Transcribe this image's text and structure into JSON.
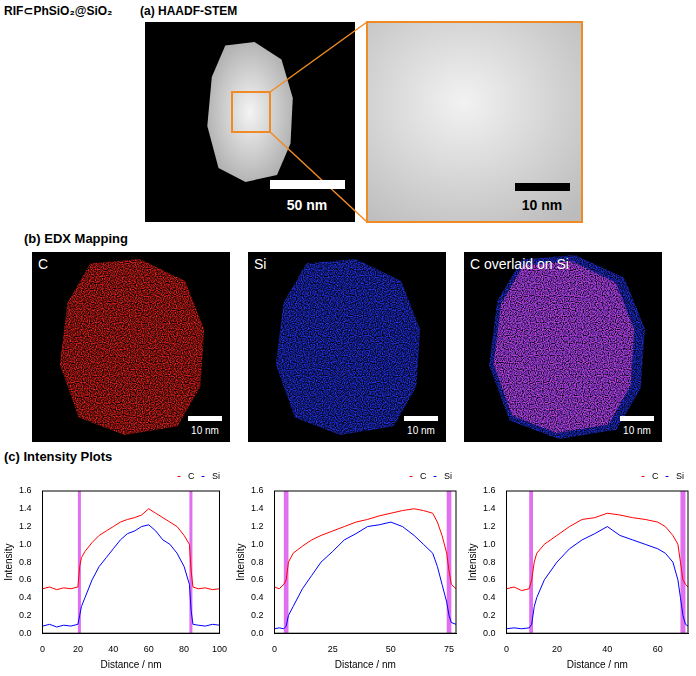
{
  "figure_label": "RIF⊂PhSiO₂@SiO₂",
  "panels": {
    "a": {
      "label": "(a)",
      "title": "HAADF-STEM",
      "scale_bars": [
        "50 nm",
        "10 nm"
      ]
    },
    "b": {
      "label": "(b)",
      "title": "EDX Mapping",
      "maps": [
        {
          "label": "C",
          "color": "#e8201c",
          "scale_bar": "10 nm"
        },
        {
          "label": "Si",
          "color": "#2233ee",
          "scale_bar": "10 nm"
        },
        {
          "label": "C overlaid on Si",
          "color": "#d040d0",
          "scale_bar": "10 nm"
        }
      ]
    },
    "c": {
      "label": "(c)",
      "title": "Intensity Plots"
    }
  },
  "chart_data": [
    {
      "type": "line",
      "x_label": "Distance / nm",
      "y_label": "Intensity",
      "x": [
        0,
        4,
        8,
        12,
        16,
        20,
        21,
        22,
        24,
        28,
        32,
        36,
        40,
        44,
        48,
        52,
        56,
        60,
        64,
        68,
        72,
        76,
        80,
        83,
        84,
        85,
        88,
        92,
        96,
        100
      ],
      "series": [
        {
          "name": "C",
          "color": "#ff0000",
          "values": [
            0.5,
            0.52,
            0.49,
            0.51,
            0.5,
            0.52,
            0.75,
            0.85,
            0.92,
            1.02,
            1.1,
            1.15,
            1.2,
            1.25,
            1.28,
            1.3,
            1.33,
            1.4,
            1.35,
            1.3,
            1.25,
            1.2,
            1.1,
            1.0,
            0.7,
            0.52,
            0.5,
            0.51,
            0.49,
            0.5
          ]
        },
        {
          "name": "Si",
          "color": "#0000ff",
          "values": [
            0.08,
            0.1,
            0.07,
            0.09,
            0.08,
            0.1,
            0.2,
            0.3,
            0.4,
            0.6,
            0.75,
            0.85,
            0.95,
            1.05,
            1.12,
            1.15,
            1.2,
            1.22,
            1.15,
            1.05,
            1.0,
            0.9,
            0.75,
            0.55,
            0.25,
            0.1,
            0.09,
            0.08,
            0.1,
            0.09
          ]
        }
      ],
      "highlights": {
        "color": "#e070f0",
        "ranges": [
          [
            20,
            21.5
          ],
          [
            83,
            84.5
          ]
        ]
      },
      "xlim": [
        0,
        100
      ],
      "xticks": [
        0,
        20,
        40,
        60,
        80,
        100
      ],
      "ylim": [
        0,
        1.6
      ],
      "yticks": [
        {
          "value": 0,
          "label": "0.0"
        },
        0.2,
        0.4,
        0.6,
        0.8,
        {
          "value": 1,
          "label": "1.0"
        },
        1.2,
        1.4,
        1.6
      ],
      "grid": false,
      "legend": "top"
    },
    {
      "type": "line",
      "x_label": "Distance / nm",
      "y_label": "Intensity",
      "x": [
        0,
        2,
        4,
        5,
        6,
        8,
        12,
        16,
        20,
        25,
        30,
        35,
        40,
        45,
        50,
        55,
        60,
        64,
        68,
        70,
        72,
        74,
        75,
        76,
        78
      ],
      "series": [
        {
          "name": "C",
          "color": "#ff0000",
          "values": [
            0.52,
            0.5,
            0.55,
            0.6,
            0.8,
            0.9,
            0.98,
            1.05,
            1.1,
            1.15,
            1.2,
            1.25,
            1.28,
            1.32,
            1.35,
            1.38,
            1.4,
            1.38,
            1.35,
            1.25,
            1.1,
            0.9,
            0.7,
            0.55,
            0.5
          ]
        },
        {
          "name": "Si",
          "color": "#0000ff",
          "values": [
            0.05,
            0.06,
            0.05,
            0.08,
            0.2,
            0.3,
            0.5,
            0.65,
            0.8,
            0.92,
            1.05,
            1.12,
            1.2,
            1.22,
            1.25,
            1.2,
            1.1,
            1.0,
            0.9,
            0.75,
            0.55,
            0.35,
            0.2,
            0.12,
            0.1
          ]
        }
      ],
      "highlights": {
        "color": "#e070f0",
        "ranges": [
          [
            4,
            6
          ],
          [
            74,
            76
          ]
        ]
      },
      "xlim": [
        0,
        78
      ],
      "xticks": [
        0,
        25,
        50,
        75
      ],
      "ylim": [
        0,
        1.6
      ],
      "yticks": [
        {
          "value": 0,
          "label": "0.0"
        },
        0.2,
        0.4,
        0.6,
        0.8,
        {
          "value": 1,
          "label": "1.0"
        },
        1.2,
        1.4,
        1.6
      ],
      "grid": false,
      "legend": "top"
    },
    {
      "type": "line",
      "x_label": "Distance / nm",
      "y_label": "Intensity",
      "x": [
        0,
        3,
        6,
        9,
        10,
        11,
        12,
        15,
        20,
        25,
        30,
        35,
        40,
        45,
        50,
        55,
        60,
        63,
        66,
        68,
        69,
        70,
        71,
        72
      ],
      "series": [
        {
          "name": "C",
          "color": "#ff0000",
          "values": [
            0.5,
            0.52,
            0.48,
            0.5,
            0.6,
            0.8,
            0.9,
            1.0,
            1.1,
            1.2,
            1.28,
            1.3,
            1.35,
            1.33,
            1.3,
            1.28,
            1.25,
            1.2,
            1.1,
            1.0,
            0.8,
            0.6,
            0.55,
            0.52
          ]
        },
        {
          "name": "Si",
          "color": "#0000ff",
          "values": [
            0.05,
            0.06,
            0.05,
            0.06,
            0.1,
            0.3,
            0.4,
            0.6,
            0.8,
            0.95,
            1.05,
            1.12,
            1.2,
            1.1,
            1.05,
            1.0,
            0.95,
            0.9,
            0.8,
            0.6,
            0.4,
            0.2,
            0.1,
            0.08
          ]
        }
      ],
      "highlights": {
        "color": "#e070f0",
        "ranges": [
          [
            9,
            10.5
          ],
          [
            69,
            71
          ]
        ]
      },
      "xlim": [
        0,
        72
      ],
      "xticks": [
        0,
        20,
        40,
        60
      ],
      "ylim": [
        0,
        1.6
      ],
      "yticks": [
        {
          "value": 0,
          "label": "0.0"
        },
        0.2,
        0.4,
        0.6,
        0.8,
        {
          "value": 1,
          "label": "1.0"
        },
        1.2,
        1.4,
        1.6
      ],
      "grid": false,
      "legend": "top"
    }
  ]
}
